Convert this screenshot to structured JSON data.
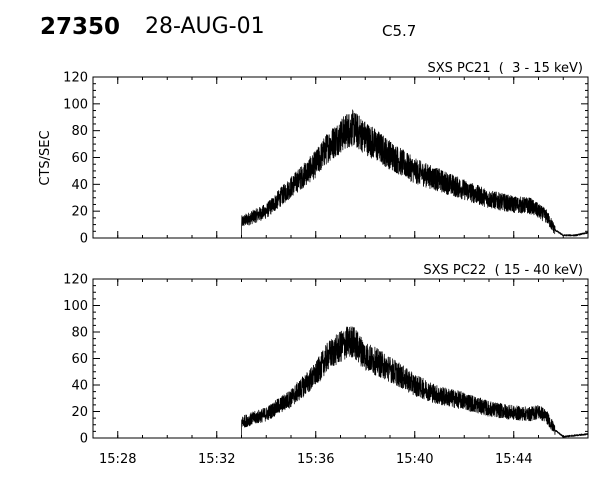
{
  "header": {
    "event_id": "27350",
    "date": "28-AUG-01",
    "flare_class": "C5.7"
  },
  "ylabel": "CTS/SEC",
  "chart_data": [
    {
      "type": "line",
      "title": "SXS PC21  (  3 - 15 keV)",
      "ylabel": "CTS/SEC",
      "ylim": [
        0,
        120
      ],
      "yticks": [
        0,
        20,
        40,
        60,
        80,
        100,
        120
      ],
      "xlim": [
        "15:27",
        "15:47"
      ],
      "xticks": [
        "15:28",
        "15:32",
        "15:36",
        "15:40",
        "15:44"
      ],
      "series": [
        {
          "x": [
            "15:27:00",
            "15:33:00",
            "15:33:00",
            "15:34:00",
            "15:35:00",
            "15:36:00",
            "15:36:30",
            "15:37:15",
            "15:37:30",
            "15:38:00",
            "15:39:00",
            "15:40:00",
            "15:41:00",
            "15:42:00",
            "15:43:00",
            "15:44:00",
            "15:44:40",
            "15:45:00",
            "15:45:20",
            "15:45:40",
            "15:46:00",
            "15:46:30",
            "15:47:00"
          ],
          "values": [
            0,
            0,
            12,
            20,
            38,
            55,
            68,
            80,
            82,
            75,
            62,
            50,
            43,
            36,
            29,
            25,
            24,
            20,
            16,
            6,
            2,
            2,
            4
          ]
        }
      ]
    },
    {
      "type": "line",
      "title": "SXS PC22  ( 15 - 40 keV)",
      "ylabel": "",
      "ylim": [
        0,
        120
      ],
      "yticks": [
        0,
        20,
        40,
        60,
        80,
        100,
        120
      ],
      "xlim": [
        "15:27",
        "15:47"
      ],
      "xticks": [
        "15:28",
        "15:32",
        "15:36",
        "15:40",
        "15:44"
      ],
      "series": [
        {
          "x": [
            "15:27:00",
            "15:33:00",
            "15:33:00",
            "15:34:00",
            "15:35:00",
            "15:36:00",
            "15:36:30",
            "15:37:15",
            "15:37:30",
            "15:38:00",
            "15:39:00",
            "15:40:00",
            "15:41:00",
            "15:42:00",
            "15:43:00",
            "15:44:00",
            "15:44:40",
            "15:45:00",
            "15:45:20",
            "15:45:40",
            "15:46:00",
            "15:46:30",
            "15:47:00"
          ],
          "values": [
            0,
            0,
            12,
            18,
            30,
            48,
            62,
            72,
            73,
            62,
            52,
            40,
            32,
            28,
            22,
            19,
            18,
            20,
            16,
            6,
            1,
            2,
            3
          ]
        }
      ]
    }
  ]
}
